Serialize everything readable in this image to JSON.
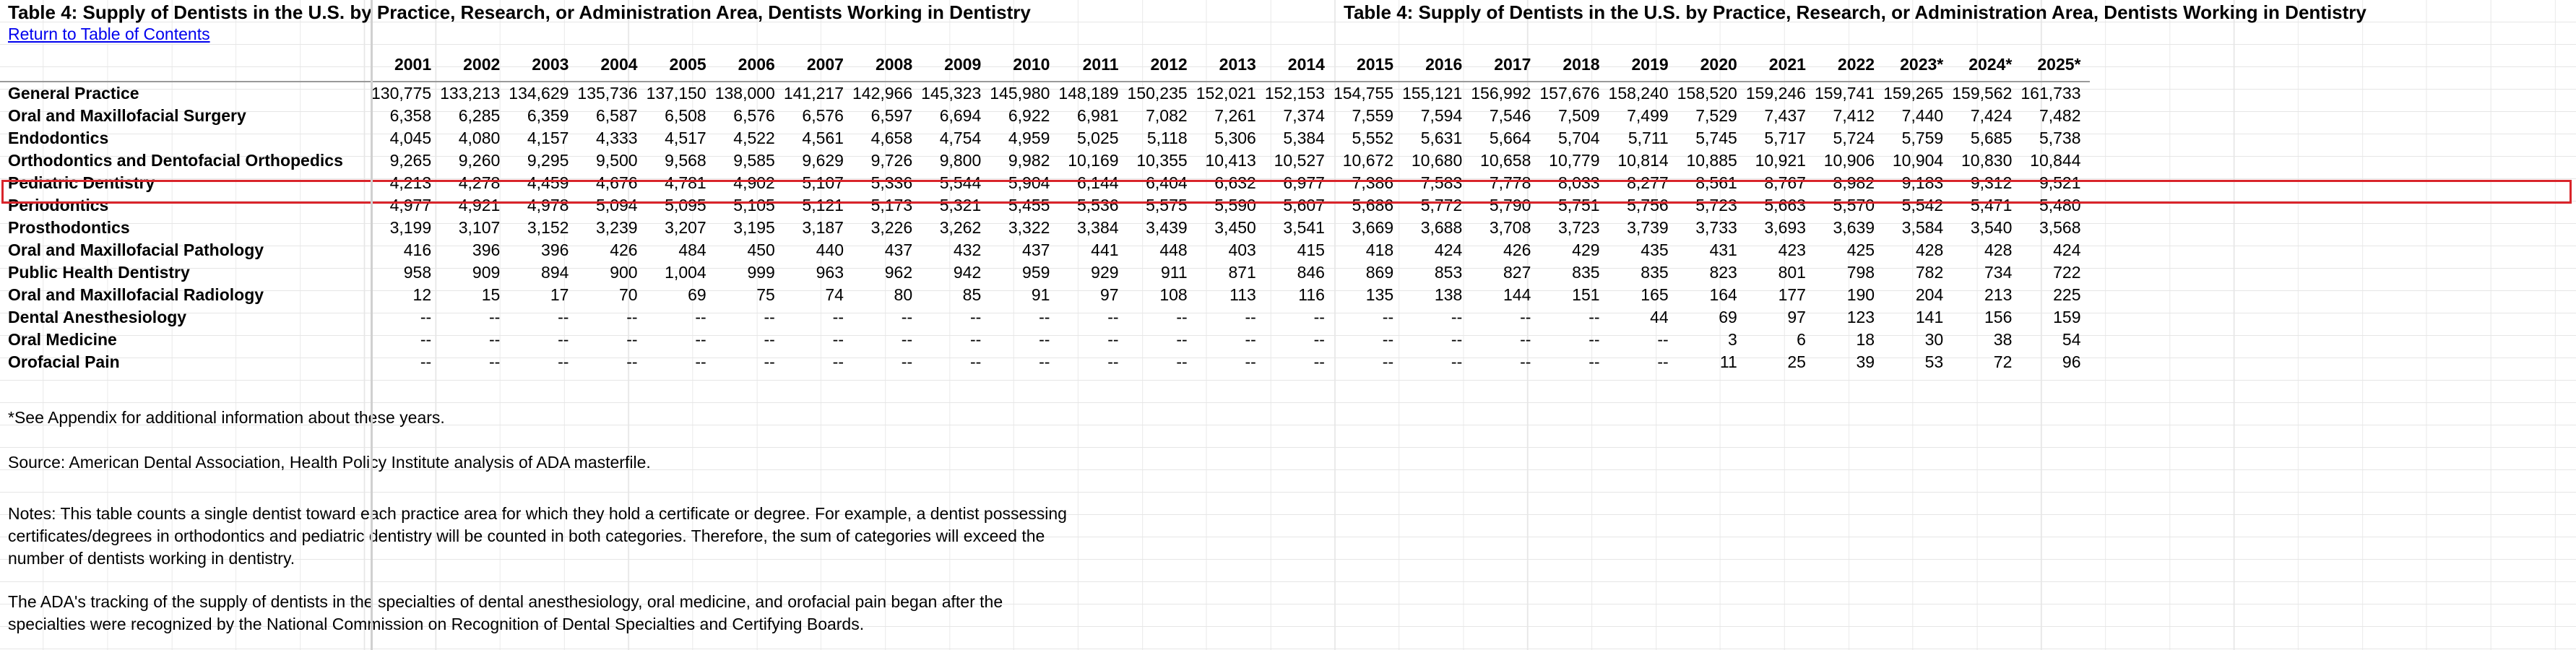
{
  "title_left": "Table 4: Supply of Dentists in the U.S. by Practice, Research, or Administration Area, Dentists Working in Dentistry",
  "title_right": "Table 4: Supply of Dentists in the U.S. by Practice, Research, or Administration Area, Dentists Working in Dentistry",
  "toc_link": "Return to Table of Contents",
  "years": [
    "2001",
    "2002",
    "2003",
    "2004",
    "2005",
    "2006",
    "2007",
    "2008",
    "2009",
    "2010",
    "2011",
    "2012",
    "2013",
    "2014",
    "2015",
    "2016",
    "2017",
    "2018",
    "2019",
    "2020",
    "2021",
    "2022",
    "2023*",
    "2024*",
    "2025*"
  ],
  "highlight_row": "Pediatric Dentistry",
  "rows": [
    {
      "label": "General Practice",
      "values": [
        "130,775",
        "133,213",
        "134,629",
        "135,736",
        "137,150",
        "138,000",
        "141,217",
        "142,966",
        "145,323",
        "145,980",
        "148,189",
        "150,235",
        "152,021",
        "152,153",
        "154,755",
        "155,121",
        "156,992",
        "157,676",
        "158,240",
        "158,520",
        "159,246",
        "159,741",
        "159,265",
        "159,562",
        "161,733"
      ]
    },
    {
      "label": "Oral and Maxillofacial Surgery",
      "values": [
        "6,358",
        "6,285",
        "6,359",
        "6,587",
        "6,508",
        "6,576",
        "6,576",
        "6,597",
        "6,694",
        "6,922",
        "6,981",
        "7,082",
        "7,261",
        "7,374",
        "7,559",
        "7,594",
        "7,546",
        "7,509",
        "7,499",
        "7,529",
        "7,437",
        "7,412",
        "7,440",
        "7,424",
        "7,482"
      ]
    },
    {
      "label": "Endodontics",
      "values": [
        "4,045",
        "4,080",
        "4,157",
        "4,333",
        "4,517",
        "4,522",
        "4,561",
        "4,658",
        "4,754",
        "4,959",
        "5,025",
        "5,118",
        "5,306",
        "5,384",
        "5,552",
        "5,631",
        "5,664",
        "5,704",
        "5,711",
        "5,745",
        "5,717",
        "5,724",
        "5,759",
        "5,685",
        "5,738"
      ]
    },
    {
      "label": "Orthodontics and Dentofacial Orthopedics",
      "values": [
        "9,265",
        "9,260",
        "9,295",
        "9,500",
        "9,568",
        "9,585",
        "9,629",
        "9,726",
        "9,800",
        "9,982",
        "10,169",
        "10,355",
        "10,413",
        "10,527",
        "10,672",
        "10,680",
        "10,658",
        "10,779",
        "10,814",
        "10,885",
        "10,921",
        "10,906",
        "10,904",
        "10,830",
        "10,844"
      ]
    },
    {
      "label": "Pediatric Dentistry",
      "values": [
        "4,213",
        "4,278",
        "4,459",
        "4,676",
        "4,781",
        "4,902",
        "5,107",
        "5,336",
        "5,544",
        "5,904",
        "6,144",
        "6,404",
        "6,632",
        "6,977",
        "7,386",
        "7,583",
        "7,778",
        "8,033",
        "8,277",
        "8,561",
        "8,767",
        "8,982",
        "9,183",
        "9,312",
        "9,521"
      ]
    },
    {
      "label": "Periodontics",
      "values": [
        "4,977",
        "4,921",
        "4,978",
        "5,094",
        "5,095",
        "5,105",
        "5,121",
        "5,173",
        "5,321",
        "5,455",
        "5,536",
        "5,575",
        "5,590",
        "5,607",
        "5,686",
        "5,772",
        "5,790",
        "5,751",
        "5,756",
        "5,723",
        "5,663",
        "5,570",
        "5,542",
        "5,471",
        "5,480"
      ]
    },
    {
      "label": "Prosthodontics",
      "values": [
        "3,199",
        "3,107",
        "3,152",
        "3,239",
        "3,207",
        "3,195",
        "3,187",
        "3,226",
        "3,262",
        "3,322",
        "3,384",
        "3,439",
        "3,450",
        "3,541",
        "3,669",
        "3,688",
        "3,708",
        "3,723",
        "3,739",
        "3,733",
        "3,693",
        "3,639",
        "3,584",
        "3,540",
        "3,568"
      ]
    },
    {
      "label": "Oral and Maxillofacial Pathology",
      "values": [
        "416",
        "396",
        "396",
        "426",
        "484",
        "450",
        "440",
        "437",
        "432",
        "437",
        "441",
        "448",
        "403",
        "415",
        "418",
        "424",
        "426",
        "429",
        "435",
        "431",
        "423",
        "425",
        "428",
        "428",
        "424"
      ]
    },
    {
      "label": "Public Health Dentistry",
      "values": [
        "958",
        "909",
        "894",
        "900",
        "1,004",
        "999",
        "963",
        "962",
        "942",
        "959",
        "929",
        "911",
        "871",
        "846",
        "869",
        "853",
        "827",
        "835",
        "835",
        "823",
        "801",
        "798",
        "782",
        "734",
        "722"
      ]
    },
    {
      "label": "Oral and Maxillofacial Radiology",
      "values": [
        "12",
        "15",
        "17",
        "70",
        "69",
        "75",
        "74",
        "80",
        "85",
        "91",
        "97",
        "108",
        "113",
        "116",
        "135",
        "138",
        "144",
        "151",
        "165",
        "164",
        "177",
        "190",
        "204",
        "213",
        "225"
      ]
    },
    {
      "label": "Dental Anesthesiology",
      "values": [
        "--",
        "--",
        "--",
        "--",
        "--",
        "--",
        "--",
        "--",
        "--",
        "--",
        "--",
        "--",
        "--",
        "--",
        "--",
        "--",
        "--",
        "--",
        "44",
        "69",
        "97",
        "123",
        "141",
        "156",
        "159"
      ]
    },
    {
      "label": "Oral Medicine",
      "values": [
        "--",
        "--",
        "--",
        "--",
        "--",
        "--",
        "--",
        "--",
        "--",
        "--",
        "--",
        "--",
        "--",
        "--",
        "--",
        "--",
        "--",
        "--",
        "--",
        "3",
        "6",
        "18",
        "30",
        "38",
        "54"
      ]
    },
    {
      "label": "Orofacial Pain",
      "values": [
        "--",
        "--",
        "--",
        "--",
        "--",
        "--",
        "--",
        "--",
        "--",
        "--",
        "--",
        "--",
        "--",
        "--",
        "--",
        "--",
        "--",
        "--",
        "--",
        "11",
        "25",
        "39",
        "53",
        "72",
        "96"
      ]
    }
  ],
  "notes": {
    "appendix": "*See Appendix for additional information about these years.",
    "source": "Source: American Dental Association, Health Policy Institute analysis of ADA masterfile.",
    "notes_text": "Notes: This table counts a single dentist toward each practice area for which they hold a certificate or degree. For example, a dentist possessing certificates/degrees in orthodontics and pediatric dentistry will be counted in both categories. Therefore, the sum of categories will exceed the number of dentists working in dentistry.",
    "tracking": "The ADA's tracking of the supply of dentists in the specialties of dental anesthesiology, oral medicine, and orofacial pain began after the specialties were recognized by the National Commission on Recognition of Dental Specialties and Certifying Boards."
  },
  "colors": {
    "highlight_border": "#d9252b",
    "link": "#0000ee",
    "gridline": "#e6e6e6"
  }
}
